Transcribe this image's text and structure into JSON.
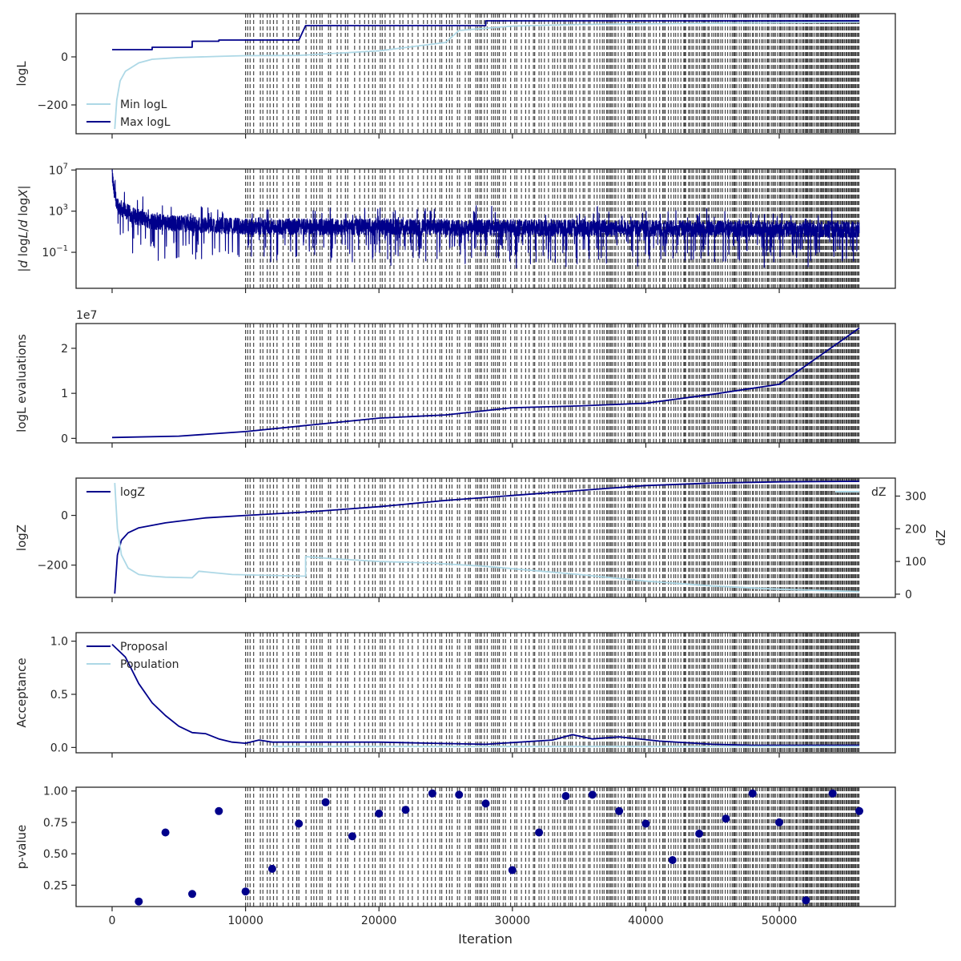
{
  "chart_data": [
    {
      "type": "line",
      "ylabel": "logL",
      "yticks": [
        {
          "v": 0,
          "label": "0"
        },
        {
          "v": -200,
          "label": "−200"
        }
      ],
      "ylim": [
        -320,
        180
      ],
      "legend": "lower-left",
      "series": [
        {
          "name": "Min logL",
          "color": "#add8e6",
          "points": [
            [
              200,
              -300
            ],
            [
              350,
              -180
            ],
            [
              600,
              -100
            ],
            [
              1000,
              -60
            ],
            [
              2000,
              -25
            ],
            [
              3000,
              -10
            ],
            [
              5000,
              -3
            ],
            [
              8000,
              2
            ],
            [
              10000,
              5
            ],
            [
              14000,
              6
            ],
            [
              20000,
              25
            ],
            [
              25000,
              60
            ],
            [
              26000,
              110
            ],
            [
              30000,
              128
            ],
            [
              35000,
              135
            ],
            [
              45000,
              140
            ],
            [
              56000,
              145
            ]
          ]
        },
        {
          "name": "Max logL",
          "color": "#00008b",
          "points": [
            [
              0,
              30
            ],
            [
              3000,
              30
            ],
            [
              3000,
              40
            ],
            [
              6000,
              40
            ],
            [
              6000,
              65
            ],
            [
              8000,
              65
            ],
            [
              8000,
              70
            ],
            [
              14000,
              70
            ],
            [
              14500,
              130
            ],
            [
              28000,
              130
            ],
            [
              28000,
              150
            ],
            [
              56000,
              150
            ]
          ]
        }
      ]
    },
    {
      "type": "line",
      "ylabel": "|d logL / d logX|",
      "log": true,
      "yticks": [
        {
          "v": 7,
          "label": "10",
          "exp": "7"
        },
        {
          "v": 3,
          "label": "10",
          "exp": "3"
        },
        {
          "v": -1,
          "label": "10",
          "exp": "−1"
        }
      ],
      "ylim": [
        -4.5,
        7.1
      ],
      "series": [
        {
          "name": "",
          "color": "#00008b",
          "noise": true,
          "points": [
            [
              0,
              6.6
            ],
            [
              150,
              4.8
            ],
            [
              500,
              3.4
            ],
            [
              1500,
              2.6
            ],
            [
              3000,
              2.0
            ],
            [
              6000,
              1.7
            ],
            [
              10000,
              1.5
            ],
            [
              30000,
              1.4
            ],
            [
              56000,
              1.2
            ]
          ]
        }
      ]
    },
    {
      "type": "line",
      "ylabel": "logL evaluations",
      "offset_text": "1e7",
      "yticks": [
        {
          "v": 0,
          "label": "0"
        },
        {
          "v": 1,
          "label": "1"
        },
        {
          "v": 2,
          "label": "2"
        }
      ],
      "ylim": [
        -0.1,
        2.55
      ],
      "series": [
        {
          "name": "",
          "color": "#00008b",
          "points": [
            [
              0,
              0.02
            ],
            [
              5000,
              0.05
            ],
            [
              10000,
              0.15
            ],
            [
              15000,
              0.3
            ],
            [
              20000,
              0.45
            ],
            [
              25000,
              0.52
            ],
            [
              30000,
              0.68
            ],
            [
              35000,
              0.72
            ],
            [
              40000,
              0.78
            ],
            [
              45000,
              0.98
            ],
            [
              50000,
              1.2
            ],
            [
              56000,
              2.45
            ]
          ]
        }
      ]
    },
    {
      "type": "line",
      "ylabel": "logZ",
      "y2label": "dZ",
      "yticks": [
        {
          "v": 0,
          "label": "0"
        },
        {
          "v": -200,
          "label": "−200"
        }
      ],
      "ylim": [
        -330,
        150
      ],
      "y2ticks": [
        {
          "v": 0,
          "label": "0"
        },
        {
          "v": 100,
          "label": "100"
        },
        {
          "v": 200,
          "label": "200"
        },
        {
          "v": 300,
          "label": "300"
        }
      ],
      "y2lim": [
        -10,
        355
      ],
      "legend": "upper-left",
      "legend2": "upper-right",
      "series": [
        {
          "name": "logZ",
          "color": "#00008b",
          "points": [
            [
              200,
              -315
            ],
            [
              400,
              -160
            ],
            [
              700,
              -100
            ],
            [
              1200,
              -70
            ],
            [
              2000,
              -50
            ],
            [
              4000,
              -30
            ],
            [
              7000,
              -10
            ],
            [
              10000,
              0
            ],
            [
              15000,
              15
            ],
            [
              20000,
              35
            ],
            [
              25000,
              60
            ],
            [
              30000,
              80
            ],
            [
              35000,
              100
            ],
            [
              40000,
              120
            ],
            [
              45000,
              130
            ],
            [
              50000,
              135
            ],
            [
              56000,
              137
            ]
          ]
        },
        {
          "name": "dZ",
          "color": "#add8e6",
          "axis": "y2",
          "points": [
            [
              200,
              340
            ],
            [
              400,
              200
            ],
            [
              700,
              120
            ],
            [
              1200,
              80
            ],
            [
              2000,
              60
            ],
            [
              3000,
              55
            ],
            [
              4000,
              52
            ],
            [
              6000,
              50
            ],
            [
              6500,
              70
            ],
            [
              9000,
              60
            ],
            [
              14500,
              55
            ],
            [
              14500,
              115
            ],
            [
              16000,
              110
            ],
            [
              20000,
              100
            ],
            [
              24000,
              95
            ],
            [
              28000,
              85
            ],
            [
              35000,
              60
            ],
            [
              40000,
              40
            ],
            [
              45000,
              25
            ],
            [
              50000,
              15
            ],
            [
              56000,
              8
            ]
          ]
        }
      ]
    },
    {
      "type": "line",
      "ylabel": "Acceptance",
      "yticks": [
        {
          "v": 0.0,
          "label": "0.0"
        },
        {
          "v": 0.5,
          "label": "0.5"
        },
        {
          "v": 1.0,
          "label": "1.0"
        }
      ],
      "ylim": [
        -0.05,
        1.08
      ],
      "legend": "upper-left",
      "series": [
        {
          "name": "Proposal",
          "color": "#00008b",
          "points": [
            [
              0,
              0.97
            ],
            [
              1000,
              0.85
            ],
            [
              2000,
              0.6
            ],
            [
              3000,
              0.42
            ],
            [
              4000,
              0.3
            ],
            [
              5000,
              0.2
            ],
            [
              6000,
              0.14
            ],
            [
              7000,
              0.13
            ],
            [
              8000,
              0.08
            ],
            [
              9000,
              0.05
            ],
            [
              10000,
              0.04
            ],
            [
              11000,
              0.07
            ],
            [
              12000,
              0.05
            ],
            [
              15000,
              0.05
            ],
            [
              20000,
              0.05
            ],
            [
              24000,
              0.04
            ],
            [
              28000,
              0.03
            ],
            [
              33000,
              0.07
            ],
            [
              34500,
              0.12
            ],
            [
              36000,
              0.08
            ],
            [
              38000,
              0.1
            ],
            [
              41000,
              0.06
            ],
            [
              45000,
              0.03
            ],
            [
              48000,
              0.02
            ],
            [
              56000,
              0.02
            ]
          ]
        },
        {
          "name": "Population",
          "color": "#add8e6",
          "points": [
            [
              12000,
              0.01
            ],
            [
              56000,
              0.01
            ]
          ]
        }
      ]
    },
    {
      "type": "scatter",
      "ylabel": "p-value",
      "xlabel": "Iteration",
      "yticks": [
        {
          "v": 0.25,
          "label": "0.25"
        },
        {
          "v": 0.5,
          "label": "0.50"
        },
        {
          "v": 0.75,
          "label": "0.75"
        },
        {
          "v": 1.0,
          "label": "1.00"
        }
      ],
      "ylim": [
        0.08,
        1.03
      ],
      "series": [
        {
          "name": "",
          "color": "#00008b",
          "points": [
            [
              2000,
              0.12
            ],
            [
              4000,
              0.67
            ],
            [
              6000,
              0.18
            ],
            [
              8000,
              0.84
            ],
            [
              10000,
              0.2
            ],
            [
              12000,
              0.38
            ],
            [
              14000,
              0.74
            ],
            [
              16000,
              0.91
            ],
            [
              18000,
              0.64
            ],
            [
              20000,
              0.82
            ],
            [
              22000,
              0.85
            ],
            [
              24000,
              0.98
            ],
            [
              26000,
              0.97
            ],
            [
              28000,
              0.9
            ],
            [
              30000,
              0.37
            ],
            [
              32000,
              0.67
            ],
            [
              34000,
              0.96
            ],
            [
              36000,
              0.97
            ],
            [
              38000,
              0.84
            ],
            [
              40000,
              0.74
            ],
            [
              42000,
              0.45
            ],
            [
              44000,
              0.66
            ],
            [
              46000,
              0.78
            ],
            [
              48000,
              0.98
            ],
            [
              50000,
              0.75
            ],
            [
              52000,
              0.13
            ],
            [
              54000,
              0.98
            ],
            [
              56000,
              0.84
            ]
          ]
        }
      ]
    }
  ],
  "x_axis": {
    "xlim": [
      -2700,
      58700
    ],
    "ticks": [
      {
        "v": 0,
        "label": "0"
      },
      {
        "v": 10000,
        "label": "10000"
      },
      {
        "v": 20000,
        "label": "20000"
      },
      {
        "v": 30000,
        "label": "30000"
      },
      {
        "v": 40000,
        "label": "40000"
      },
      {
        "v": 50000,
        "label": "50000"
      }
    ],
    "label": "Iteration"
  },
  "insertion_lines": {
    "start": 10000,
    "end": 56000,
    "color": "#262626"
  },
  "colors": {
    "dark": "#00008b",
    "light": "#add8e6",
    "text": "#262626",
    "spine": "#262626"
  }
}
